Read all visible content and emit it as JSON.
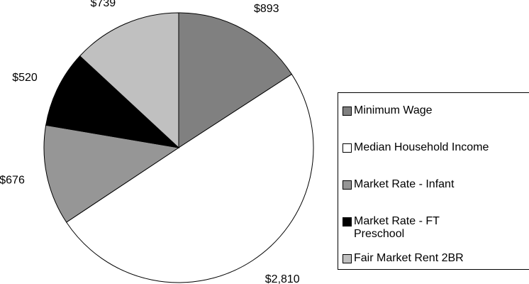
{
  "chart_data": {
    "type": "pie",
    "categories": [
      "Minimum Wage",
      "Median Household Income",
      "Market Rate - Infant",
      "Market Rate - FT Preschool",
      "Fair Market Rent 2BR"
    ],
    "values": [
      893,
      2810,
      676,
      520,
      739
    ],
    "value_labels": [
      "$893",
      "$2,810",
      "$676",
      "$520",
      "$739"
    ],
    "colors": [
      "#808080",
      "#ffffff",
      "#969696",
      "#000000",
      "#c0c0c0"
    ],
    "legend": "right"
  }
}
